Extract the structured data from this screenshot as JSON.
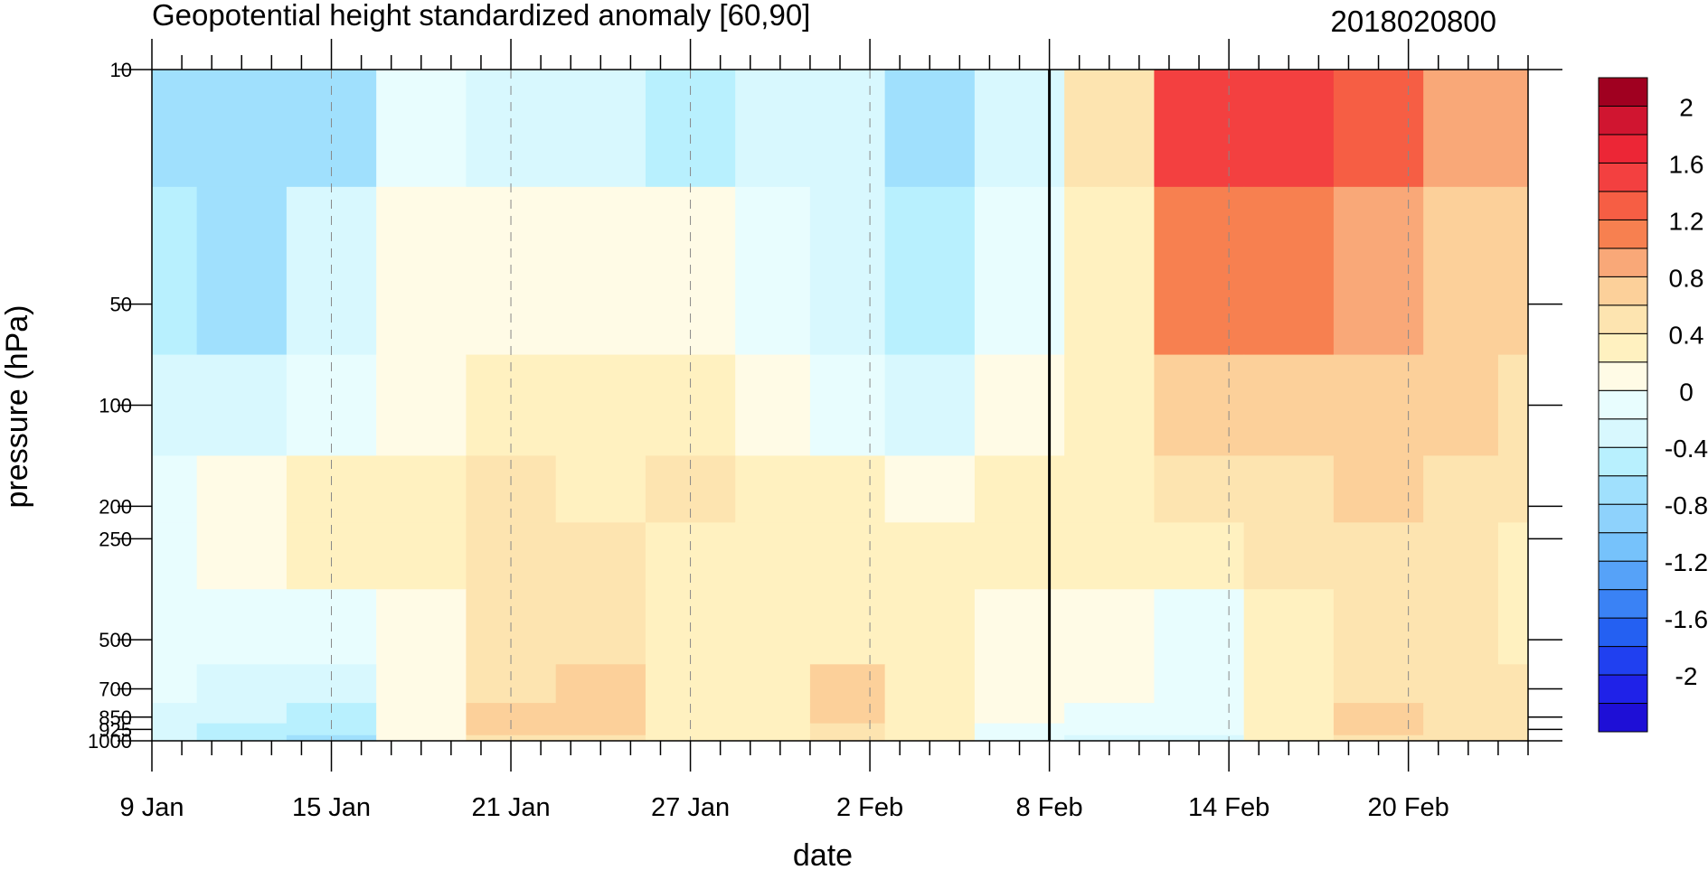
{
  "chart_data": {
    "type": "heatmap",
    "title": "Geopotential height standardized anomaly [60,90]",
    "subtitle": "2018020800",
    "xlabel": "date",
    "ylabel": "pressure (hPa)",
    "x_start": "2018-01-09",
    "x_end": "2018-02-24",
    "x_tick_labels": [
      {
        "date": "2018-01-09",
        "label": "9 Jan"
      },
      {
        "date": "2018-01-15",
        "label": "15 Jan"
      },
      {
        "date": "2018-01-21",
        "label": "21 Jan"
      },
      {
        "date": "2018-01-27",
        "label": "27 Jan"
      },
      {
        "date": "2018-02-02",
        "label": "2 Feb"
      },
      {
        "date": "2018-02-08",
        "label": "8 Feb"
      },
      {
        "date": "2018-02-14",
        "label": "14 Feb"
      },
      {
        "date": "2018-02-20",
        "label": "20 Feb"
      }
    ],
    "marked_date": "2018-02-08",
    "y_scale": "log",
    "ylim": [
      1000,
      10
    ],
    "y_ticks": [
      10,
      50,
      100,
      200,
      250,
      500,
      700,
      850,
      925,
      1000
    ],
    "y_tick_labels": [
      "10",
      "50",
      "100",
      "200",
      "250",
      "500",
      "700",
      "850",
      "925",
      "1000"
    ],
    "dates": [
      "2018-01-09",
      "2018-01-12",
      "2018-01-15",
      "2018-01-18",
      "2018-01-21",
      "2018-01-24",
      "2018-01-27",
      "2018-01-30",
      "2018-02-01",
      "2018-02-04",
      "2018-02-07",
      "2018-02-10",
      "2018-02-13",
      "2018-02-16",
      "2018-02-19",
      "2018-02-22",
      "2018-02-24"
    ],
    "levels": [
      10,
      50,
      100,
      200,
      250,
      500,
      700,
      850,
      925,
      1000
    ],
    "values": [
      [
        -0.45,
        -0.6,
        -0.45,
        0.1,
        -0.05,
        -0.15,
        -0.25,
        -0.15,
        -0.2,
        -0.5,
        -0.05,
        0.6,
        1.65,
        1.75,
        1.45,
        1.1,
        1.05
      ],
      [
        -0.35,
        -0.45,
        -0.15,
        0.2,
        0.3,
        0.25,
        0.2,
        0.05,
        -0.1,
        -0.35,
        0.05,
        0.5,
        1.25,
        1.3,
        1.15,
        0.95,
        0.9
      ],
      [
        -0.2,
        -0.1,
        0.1,
        0.35,
        0.55,
        0.5,
        0.55,
        0.35,
        0.15,
        -0.05,
        0.2,
        0.45,
        0.85,
        0.95,
        0.95,
        0.8,
        0.75
      ],
      [
        0.05,
        0.2,
        0.5,
        0.5,
        0.65,
        0.55,
        0.6,
        0.5,
        0.45,
        0.35,
        0.4,
        0.45,
        0.6,
        0.7,
        0.8,
        0.65,
        0.6
      ],
      [
        0.15,
        0.3,
        0.45,
        0.45,
        0.65,
        0.6,
        0.55,
        0.5,
        0.5,
        0.45,
        0.4,
        0.4,
        0.55,
        0.6,
        0.65,
        0.6,
        0.55
      ],
      [
        0.15,
        0.1,
        0.05,
        0.3,
        0.65,
        0.75,
        0.55,
        0.5,
        0.55,
        0.45,
        0.3,
        0.25,
        0.15,
        0.5,
        0.6,
        0.6,
        0.55
      ],
      [
        0.05,
        -0.05,
        -0.15,
        0.3,
        0.75,
        0.9,
        0.55,
        0.45,
        0.8,
        0.5,
        0.25,
        0.2,
        0.1,
        0.45,
        0.7,
        0.65,
        0.6
      ],
      [
        -0.1,
        -0.2,
        -0.3,
        0.3,
        0.8,
        0.85,
        0.55,
        0.45,
        0.85,
        0.5,
        0.2,
        0.15,
        0.05,
        0.45,
        0.8,
        0.7,
        0.6
      ],
      [
        -0.15,
        -0.3,
        -0.4,
        0.3,
        0.8,
        0.8,
        0.55,
        0.5,
        0.75,
        0.5,
        0.15,
        0.1,
        0.0,
        0.45,
        0.8,
        0.7,
        0.6
      ],
      [
        -0.2,
        -0.35,
        -0.45,
        0.3,
        0.75,
        0.75,
        0.55,
        0.55,
        0.65,
        0.5,
        0.1,
        -0.05,
        -0.05,
        0.45,
        0.75,
        0.7,
        0.6
      ]
    ],
    "colorbar": {
      "labels": [
        "2",
        "1.6",
        "1.2",
        "0.8",
        "0.4",
        "0",
        "-0.4",
        "-0.8",
        "-1.2",
        "-1.6",
        "-2"
      ],
      "bounds": [
        -2.2,
        -2.0,
        -1.8,
        -1.6,
        -1.4,
        -1.2,
        -1.0,
        -0.8,
        -0.6,
        -0.4,
        -0.2,
        0.0,
        0.2,
        0.4,
        0.6,
        0.8,
        1.0,
        1.2,
        1.4,
        1.6,
        1.8,
        2.0,
        2.2
      ],
      "colors": [
        "#1e0fd6",
        "#1f22e8",
        "#2040f0",
        "#2460f2",
        "#3a82f5",
        "#56a2f8",
        "#76c2fb",
        "#8ed2fc",
        "#a0e0fd",
        "#b8f0fe",
        "#d8f8fe",
        "#e8fdfe",
        "#fffbe6",
        "#fff1c0",
        "#fde4b0",
        "#fcd09a",
        "#f9a878",
        "#f78050",
        "#f65e44",
        "#f34040",
        "#ec2636",
        "#d01530",
        "#a00020"
      ]
    }
  }
}
